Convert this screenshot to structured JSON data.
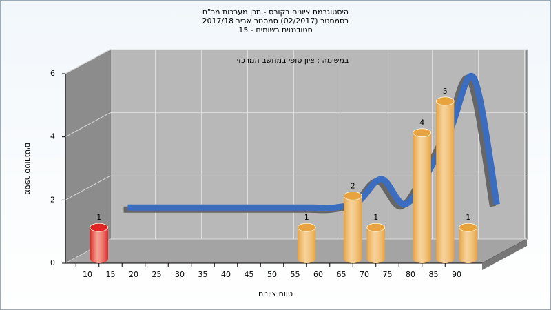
{
  "chart_data": {
    "type": "bar3d",
    "title": [
      "היסטוגרמת ציונים בקורס - תכן מערכות מכ\"ם",
      "בסמסטר  (02/2017)  סמסטר אביב 2017/18",
      "סטודנטים רשומים - 15"
    ],
    "annotation": "במשימה : ציון סופי במחשב המרכזי",
    "x_label": "טווח ציונים",
    "y_label": "מספר סטודנטים",
    "categories": [
      "10",
      "15",
      "20",
      "25",
      "30",
      "35",
      "40",
      "45",
      "50",
      "55",
      "60",
      "65",
      "70",
      "75",
      "80",
      "85",
      "90",
      null
    ],
    "values": [
      1,
      null,
      null,
      null,
      null,
      null,
      null,
      null,
      null,
      1,
      null,
      2,
      1,
      null,
      4,
      5,
      1,
      null
    ],
    "colors": [
      "#e02525",
      null,
      null,
      null,
      null,
      null,
      null,
      null,
      null,
      "#e8a23e",
      null,
      "#e8a23e",
      "#e8a23e",
      null,
      "#e8a23e",
      "#e8a23e",
      "#e8a23e",
      null
    ],
    "curve": {
      "color": "#3a6cc0",
      "values": [
        null,
        1.5,
        1.5,
        1.5,
        1.5,
        1.5,
        1.5,
        1.5,
        1.5,
        1.5,
        1.5,
        1.7,
        2.4,
        1.6,
        2.6,
        4.0,
        5.6,
        1.6
      ]
    },
    "ylim": [
      0,
      6
    ],
    "yticks": [
      0,
      2,
      4,
      6
    ],
    "grid": true
  }
}
